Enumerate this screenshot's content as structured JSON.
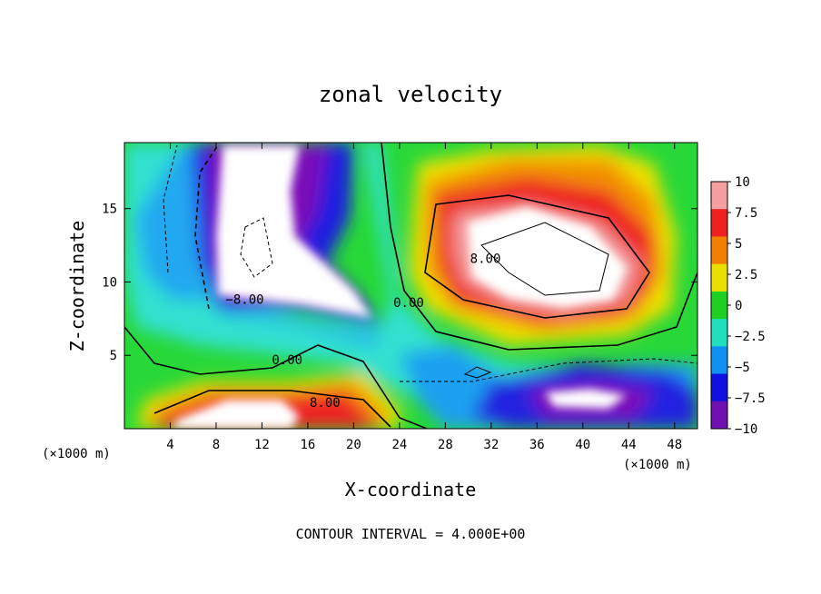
{
  "chart_data": {
    "type": "heatmap",
    "title": "zonal velocity",
    "xlabel": "X-coordinate",
    "ylabel": "Z-coordinate",
    "x_unit_left": "(×1000 m)",
    "x_unit_right": "(×1000 m)",
    "xlim": [
      0,
      50
    ],
    "ylim": [
      0,
      19.5
    ],
    "x_ticks": [
      4,
      8,
      12,
      16,
      20,
      24,
      28,
      32,
      36,
      40,
      44,
      48
    ],
    "y_ticks": [
      5,
      10,
      15
    ],
    "colorbar": {
      "min": -10,
      "max": 10,
      "ticks": [
        "10",
        "7.5",
        "5",
        "2.5",
        "0",
        "−2.5",
        "−5",
        "−7.5",
        "−10"
      ],
      "colors": [
        "#f4a0a0",
        "#ee2020",
        "#f28000",
        "#e8e000",
        "#20d020",
        "#20e0c0",
        "#1090f0",
        "#1010e0",
        "#7010b0"
      ]
    },
    "contour_labels": [
      {
        "text": "8.00",
        "x": 31.5,
        "y": 11.3
      },
      {
        "text": "−8.00",
        "x": 10.5,
        "y": 8.5
      },
      {
        "text": "0.00",
        "x": 24.8,
        "y": 8.3
      },
      {
        "text": "0.00",
        "x": 14.2,
        "y": 4.4
      },
      {
        "text": "8.00",
        "x": 17.5,
        "y": 1.5
      }
    ],
    "footer": "CONTOUR INTERVAL = 4.000E+00"
  }
}
